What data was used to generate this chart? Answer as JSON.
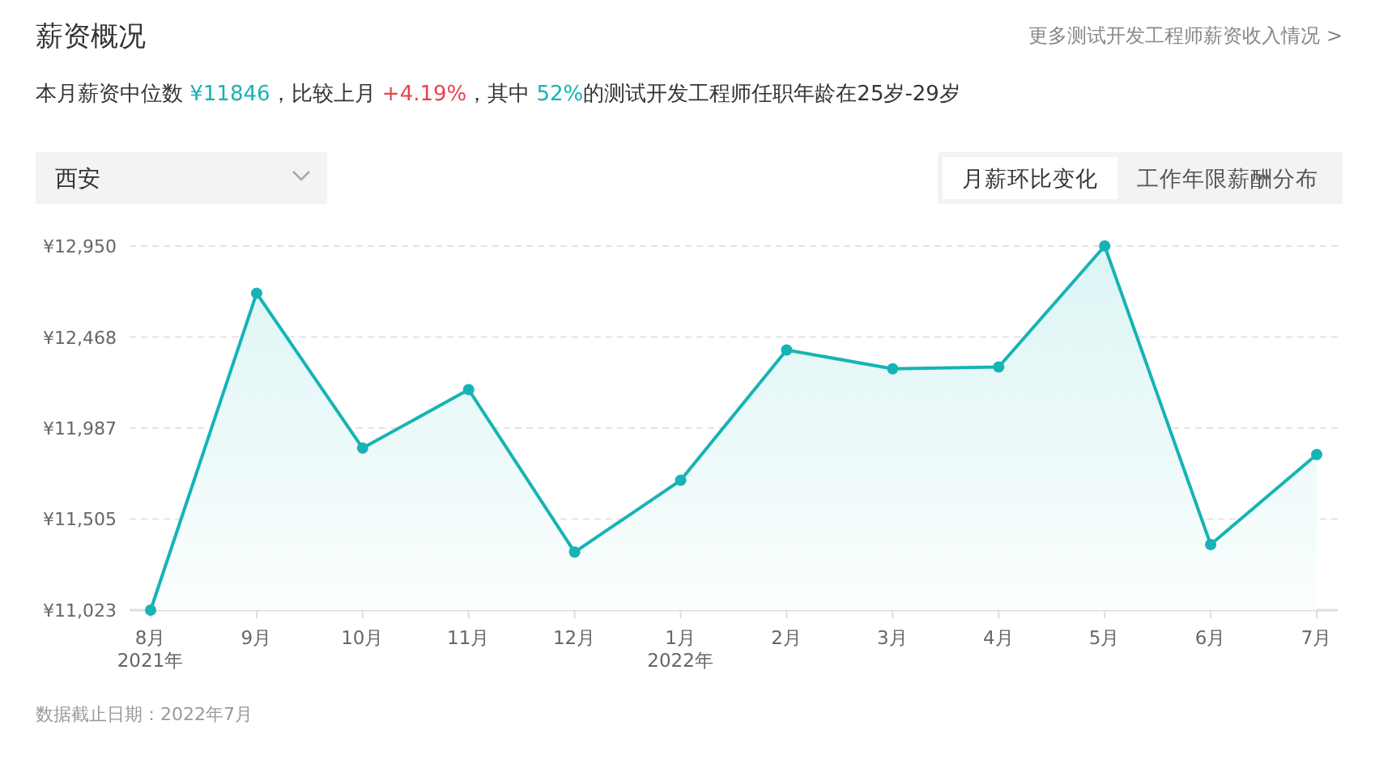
{
  "chart_data": {
    "type": "area",
    "title": "薪资概况",
    "subtitle": "本月薪资中位数 ¥11846，比较上月 +4.19%，其中 52%的测试开发工程师任职年龄在25岁-29岁",
    "categories": [
      "8月 2021年",
      "9月",
      "10月",
      "11月",
      "12月",
      "1月 2022年",
      "2月",
      "3月",
      "4月",
      "5月",
      "6月",
      "7月"
    ],
    "series": [
      {
        "color": "#17b3b5",
        "values": [
          11023,
          12700,
          11880,
          12190,
          11330,
          11710,
          12400,
          12300,
          12310,
          12950,
          11370,
          11846
        ]
      }
    ],
    "ylim": [
      11023,
      12950
    ],
    "yticks": [
      {
        "value": 11023,
        "label": "¥11,023"
      },
      {
        "value": 11505,
        "label": "¥11,505"
      },
      {
        "value": 11987,
        "label": "¥11,987"
      },
      {
        "value": 12468,
        "label": "¥12,468"
      },
      {
        "value": 12950,
        "label": "¥12,950"
      }
    ],
    "grid": "y",
    "marker": "circle",
    "line_style": "solid",
    "annotations": [
      "更多测试开发工程师薪资收入情况 >",
      "西安",
      "月薪环比变化",
      "工作年限薪酬分布",
      "数据截止日期：2022年7月"
    ]
  }
}
